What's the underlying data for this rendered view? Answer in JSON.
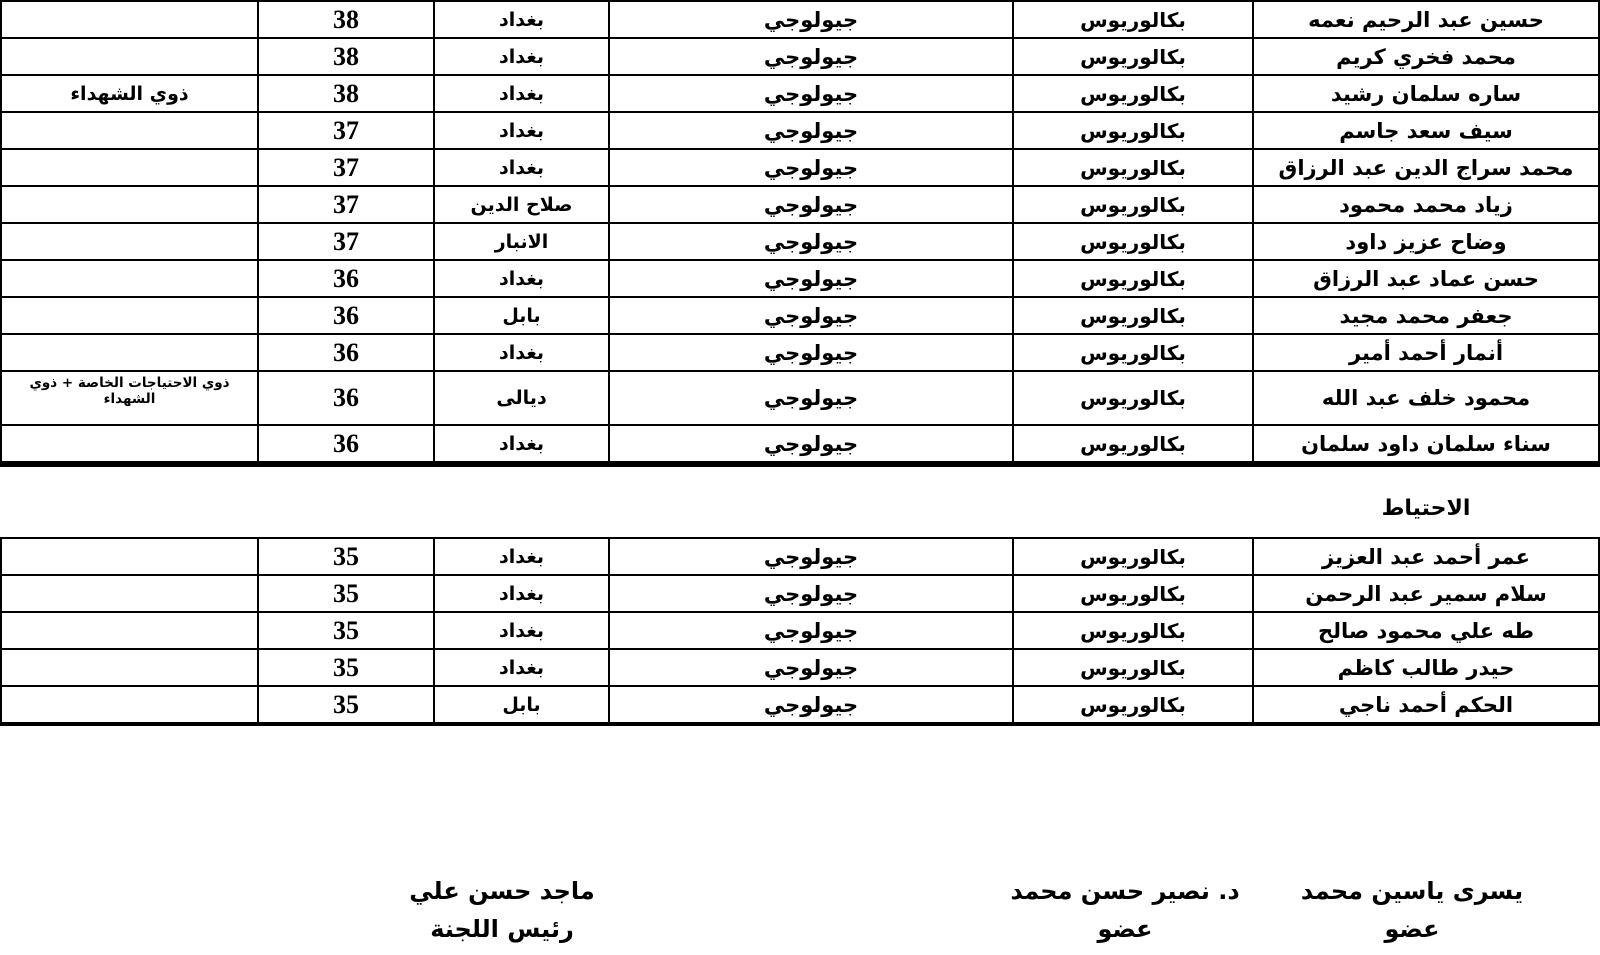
{
  "colors": {
    "background": "#ffffff",
    "text": "#000000",
    "grid_border": "#000000"
  },
  "main_table": {
    "rows": [
      {
        "name": "حسين عبد الرحيم نعمه",
        "degree": "بكالوريوس",
        "specialization": "جيولوجي",
        "city": "بغداد",
        "score": "38",
        "note": ""
      },
      {
        "name": "محمد فخري كريم",
        "degree": "بكالوريوس",
        "specialization": "جيولوجي",
        "city": "بغداد",
        "score": "38",
        "note": ""
      },
      {
        "name": "ساره سلمان رشيد",
        "degree": "بكالوريوس",
        "specialization": "جيولوجي",
        "city": "بغداد",
        "score": "38",
        "note": "ذوي الشهداء"
      },
      {
        "name": "سيف سعد جاسم",
        "degree": "بكالوريوس",
        "specialization": "جيولوجي",
        "city": "بغداد",
        "score": "37",
        "note": ""
      },
      {
        "name": "محمد سراج الدين عبد الرزاق",
        "degree": "بكالوريوس",
        "specialization": "جيولوجي",
        "city": "بغداد",
        "score": "37",
        "note": ""
      },
      {
        "name": "زياد محمد محمود",
        "degree": "بكالوريوس",
        "specialization": "جيولوجي",
        "city": "صلاح الدين",
        "score": "37",
        "note": ""
      },
      {
        "name": "وضاح عزيز داود",
        "degree": "بكالوريوس",
        "specialization": "جيولوجي",
        "city": "الانبار",
        "score": "37",
        "note": ""
      },
      {
        "name": "حسن عماد عبد الرزاق",
        "degree": "بكالوريوس",
        "specialization": "جيولوجي",
        "city": "بغداد",
        "score": "36",
        "note": ""
      },
      {
        "name": "جعفر محمد مجيد",
        "degree": "بكالوريوس",
        "specialization": "جيولوجي",
        "city": "بابل",
        "score": "36",
        "note": ""
      },
      {
        "name": "أنمار أحمد أمير",
        "degree": "بكالوريوس",
        "specialization": "جيولوجي",
        "city": "بغداد",
        "score": "36",
        "note": ""
      },
      {
        "name": "محمود خلف عبد الله",
        "degree": "بكالوريوس",
        "specialization": "جيولوجي",
        "city": "ديالى",
        "score": "36",
        "note": "ذوي الاحتياجات الخاصة + ذوي الشهداء"
      },
      {
        "name": "سناء سلمان داود سلمان",
        "degree": "بكالوريوس",
        "specialization": "جيولوجي",
        "city": "بغداد",
        "score": "36",
        "note": ""
      }
    ]
  },
  "section_title": "الاحتياط",
  "reserve_table": {
    "rows": [
      {
        "name": "عمر أحمد عبد العزيز",
        "degree": "بكالوريوس",
        "specialization": "جيولوجي",
        "city": "بغداد",
        "score": "35",
        "note": ""
      },
      {
        "name": "سلام سمير عبد الرحمن",
        "degree": "بكالوريوس",
        "specialization": "جيولوجي",
        "city": "بغداد",
        "score": "35",
        "note": ""
      },
      {
        "name": "طه علي محمود صالح",
        "degree": "بكالوريوس",
        "specialization": "جيولوجي",
        "city": "بغداد",
        "score": "35",
        "note": ""
      },
      {
        "name": "حيدر طالب كاظم",
        "degree": "بكالوريوس",
        "specialization": "جيولوجي",
        "city": "بغداد",
        "score": "35",
        "note": ""
      },
      {
        "name": "الحكم أحمد ناجي",
        "degree": "بكالوريوس",
        "specialization": "جيولوجي",
        "city": "بابل",
        "score": "35",
        "note": ""
      }
    ]
  },
  "signatures": [
    {
      "name": "ماجد حسن علي",
      "title": "رئيس اللجنة"
    },
    {
      "name": "د. نصير حسن محمد",
      "title": "عضو"
    },
    {
      "name": "يسرى ياسين محمد",
      "title": "عضو"
    }
  ]
}
